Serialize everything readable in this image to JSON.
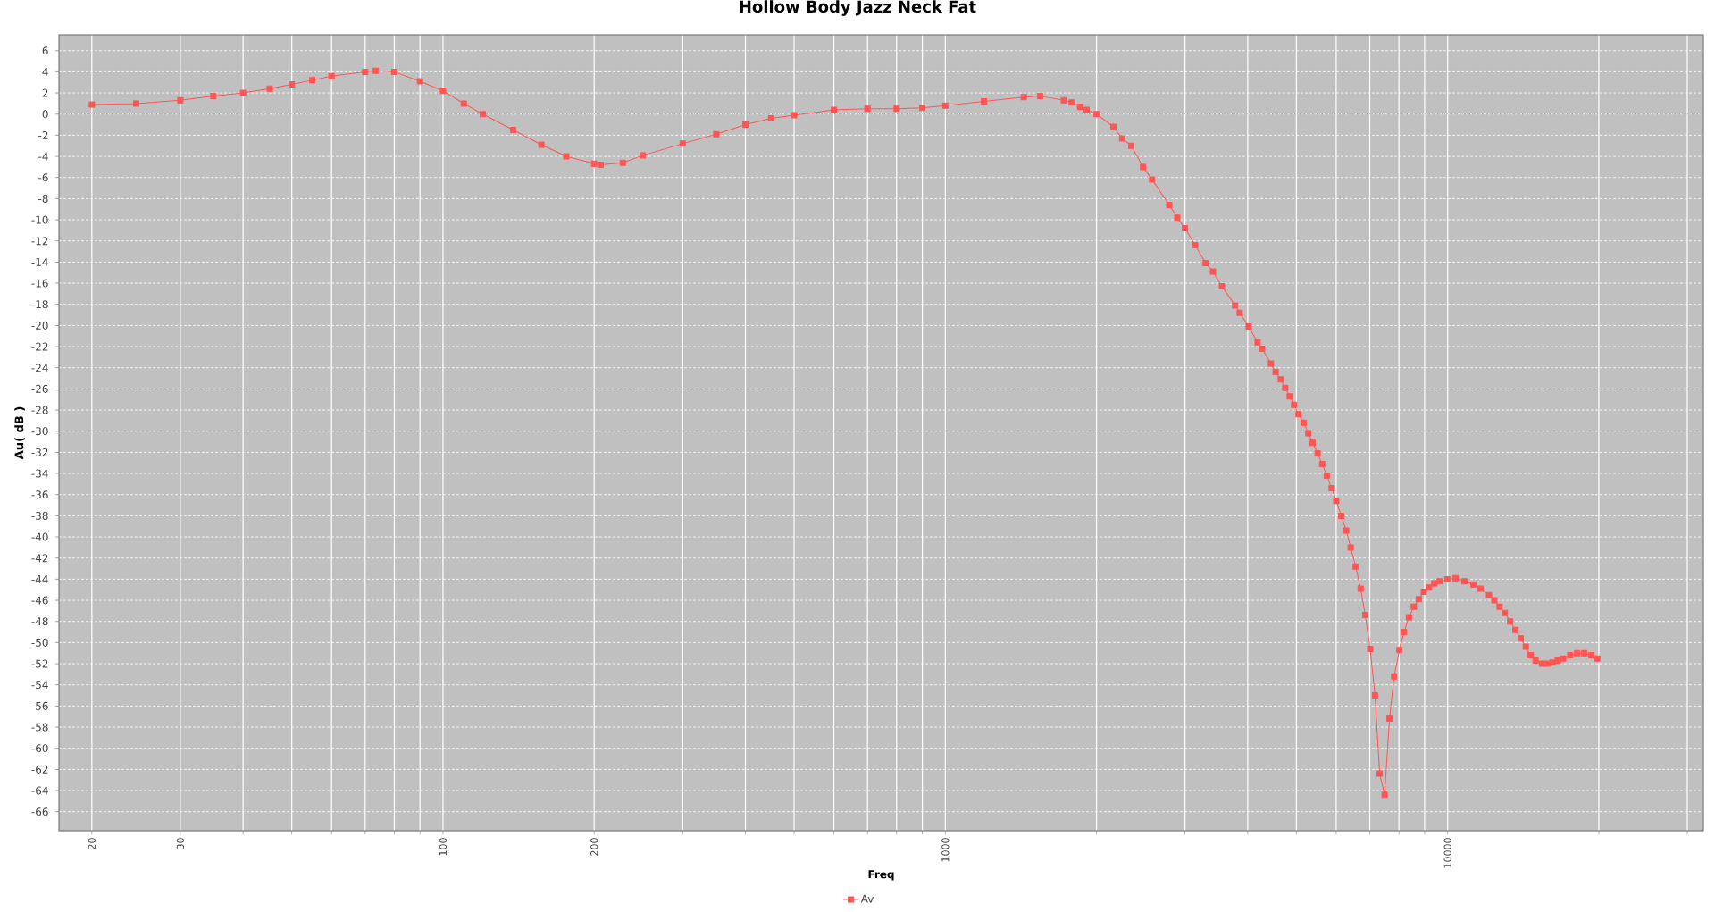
{
  "chart_data": {
    "type": "line",
    "title": "Hollow Body Jazz Neck Fat",
    "xlabel": "Freq",
    "ylabel": "Au( dB )",
    "log": "x",
    "x": [
      20,
      24.5,
      30,
      34.9,
      40,
      45.2,
      50,
      54.9,
      60,
      70,
      73.5,
      80,
      90,
      100,
      110,
      120,
      138,
      157,
      176,
      200,
      206,
      228,
      250,
      300,
      350,
      400,
      450,
      500,
      600,
      700,
      800,
      900,
      1000,
      1194,
      1433,
      1545,
      1722,
      1785,
      1855,
      1911,
      2000,
      2160,
      2250,
      2345,
      2476,
      2580,
      2792,
      2896,
      3000,
      3143,
      3297,
      3411,
      3554,
      3776,
      3856,
      4018,
      4185,
      4272,
      4449,
      4545,
      4654,
      4750,
      4849,
      4948,
      5048,
      5171,
      5282,
      5386,
      5510,
      5627,
      5746,
      5878,
      6003,
      6141,
      6281,
      6413,
      6562,
      6712,
      6855,
      7012,
      7170,
      7325,
      7491,
      7662,
      7826,
      8017,
      8187,
      8377,
      8567,
      8762,
      8963,
      9183,
      9408,
      9640,
      9986,
      10370,
      10800,
      11250,
      11620,
      12090,
      12390,
      12690,
      13000,
      13320,
      13650,
      13980,
      14310,
      14630,
      14970,
      15410,
      15790,
      16180,
      16570,
      16980,
      17540,
      18110,
      18710,
      19330,
      19860
    ],
    "series": [
      {
        "name": "Av",
        "color": "#ff5555",
        "values": [
          0.9,
          1.0,
          1.3,
          1.7,
          2.0,
          2.4,
          2.8,
          3.2,
          3.6,
          4.0,
          4.1,
          4.0,
          3.1,
          2.2,
          1.0,
          0,
          -1.5,
          -2.9,
          -4.0,
          -4.7,
          -4.8,
          -4.6,
          -3.9,
          -2.8,
          -1.9,
          -1.0,
          -0.4,
          -0.1,
          0.4,
          0.5,
          0.5,
          0.6,
          0.8,
          1.2,
          1.6,
          1.7,
          1.3,
          1.1,
          0.7,
          0.4,
          0,
          -1.2,
          -2.3,
          -3.0,
          -5.0,
          -6.2,
          -8.6,
          -9.8,
          -10.8,
          -12.4,
          -14.1,
          -14.9,
          -16.3,
          -18.1,
          -18.8,
          -20.1,
          -21.6,
          -22.2,
          -23.6,
          -24.4,
          -25.1,
          -25.9,
          -26.7,
          -27.5,
          -28.4,
          -29.2,
          -30.2,
          -31.1,
          -32.1,
          -33.1,
          -34.2,
          -35.4,
          -36.6,
          -38.0,
          -39.4,
          -41.0,
          -42.8,
          -44.9,
          -47.4,
          -50.6,
          -55.0,
          -62.4,
          -64.4,
          -57.2,
          -53.2,
          -50.7,
          -49.0,
          -47.6,
          -46.6,
          -45.9,
          -45.2,
          -44.8,
          -44.4,
          -44.2,
          -44.0,
          -43.9,
          -44.2,
          -44.5,
          -44.9,
          -45.5,
          -46.0,
          -46.6,
          -47.2,
          -48.0,
          -48.8,
          -49.6,
          -50.4,
          -51.2,
          -51.7,
          -52.0,
          -52.0,
          -51.9,
          -51.7,
          -51.5,
          -51.2,
          -51.0,
          -51.0,
          -51.2,
          -51.5
        ]
      }
    ],
    "xlim": [
      17.2,
      32300
    ],
    "ylim": [
      -67.8,
      7.5
    ],
    "xticks": [
      {
        "value": 20,
        "label": "20"
      },
      {
        "value": 30,
        "label": "30"
      },
      {
        "value": 40,
        "label": null
      },
      {
        "value": 50,
        "label": null
      },
      {
        "value": 60,
        "label": null
      },
      {
        "value": 70,
        "label": null
      },
      {
        "value": 80,
        "label": null
      },
      {
        "value": 90,
        "label": null
      },
      {
        "value": 100,
        "label": "100"
      },
      {
        "value": 200,
        "label": "200"
      },
      {
        "value": 300,
        "label": null
      },
      {
        "value": 400,
        "label": null
      },
      {
        "value": 500,
        "label": null
      },
      {
        "value": 600,
        "label": null
      },
      {
        "value": 700,
        "label": null
      },
      {
        "value": 800,
        "label": null
      },
      {
        "value": 900,
        "label": null
      },
      {
        "value": 1000,
        "label": "1000"
      },
      {
        "value": 2000,
        "label": null
      },
      {
        "value": 3000,
        "label": null
      },
      {
        "value": 4000,
        "label": null
      },
      {
        "value": 5000,
        "label": null
      },
      {
        "value": 6000,
        "label": null
      },
      {
        "value": 7000,
        "label": null
      },
      {
        "value": 8000,
        "label": null
      },
      {
        "value": 9000,
        "label": null
      },
      {
        "value": 10000,
        "label": "10000"
      },
      {
        "value": 20000,
        "label": null
      },
      {
        "value": 30000,
        "label": null
      }
    ],
    "yticks": [
      -66,
      -64,
      -62,
      -60,
      -58,
      -56,
      -54,
      -52,
      -50,
      -48,
      -46,
      -44,
      -42,
      -40,
      -38,
      -36,
      -34,
      -32,
      -30,
      -28,
      -26,
      -24,
      -22,
      -20,
      -18,
      -16,
      -14,
      -12,
      -10,
      -8,
      -6,
      -4,
      -2,
      0,
      2,
      4,
      6
    ],
    "grid": true,
    "legend": "bottom",
    "marker": "square",
    "line_style": "solid",
    "ref_lines": [
      {
        "axis": "y",
        "value": 0,
        "color": "#6666ff",
        "line_style": "dotted"
      }
    ]
  }
}
